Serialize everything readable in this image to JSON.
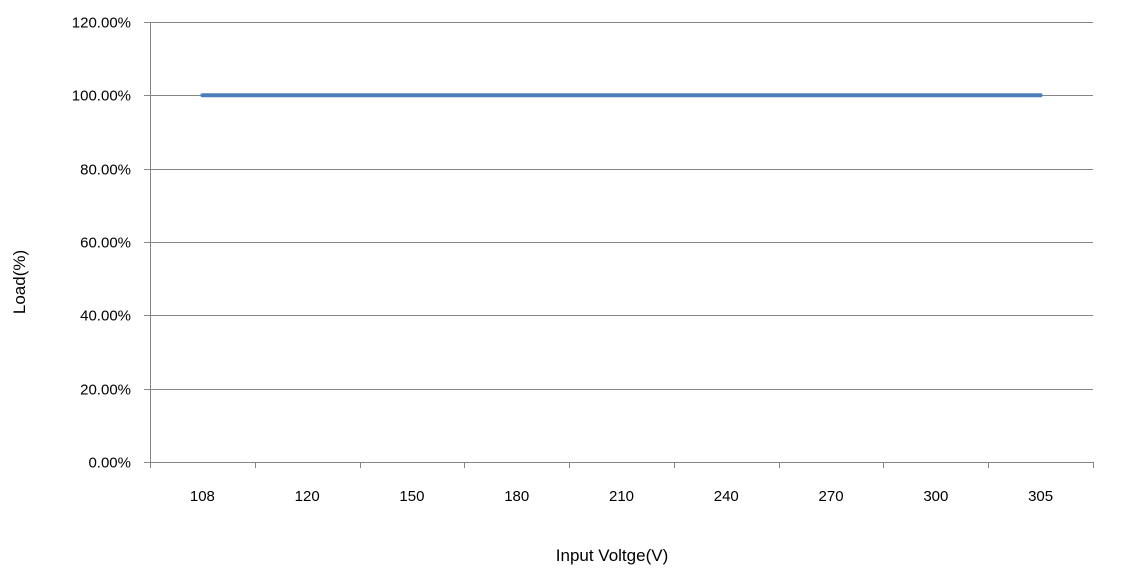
{
  "chart_data": {
    "type": "line",
    "title": "",
    "xlabel": "Input Voltge(V)",
    "ylabel": "Load(%)",
    "categories": [
      "108",
      "120",
      "150",
      "180",
      "210",
      "240",
      "270",
      "300",
      "305"
    ],
    "series": [
      {
        "values": [
          100,
          100,
          100,
          100,
          100,
          100,
          100,
          100,
          100
        ],
        "color": "#4a7ebb"
      }
    ],
    "ylim": [
      0,
      120
    ],
    "yticks": [
      0,
      20,
      40,
      60,
      80,
      100,
      120
    ],
    "ytick_labels": [
      "0.00%",
      "20.00%",
      "40.00%",
      "60.00%",
      "80.00%",
      "100.00%",
      "120.00%"
    ],
    "grid": true,
    "grid_color": "#868686",
    "axis_color": "#868686",
    "legend": "none"
  }
}
